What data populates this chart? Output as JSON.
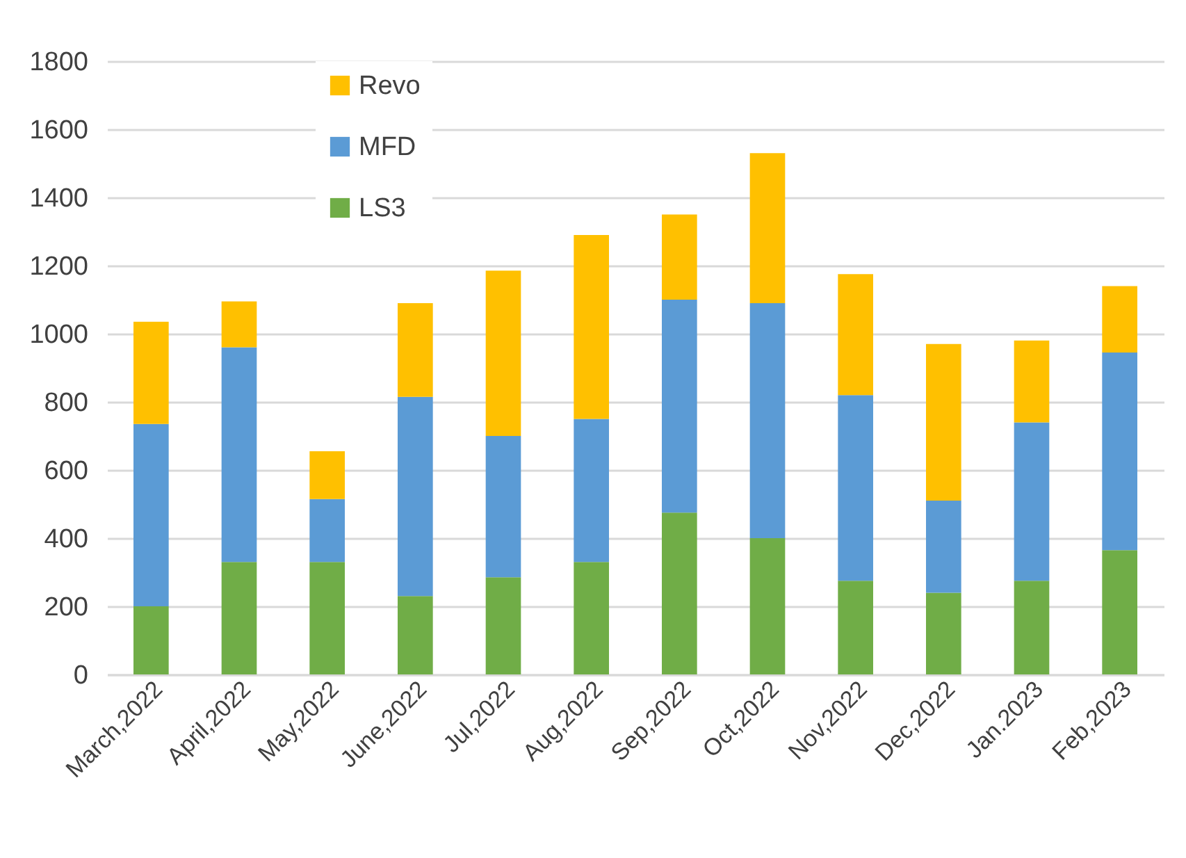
{
  "chart_data": {
    "type": "bar",
    "stacked": true,
    "categories": [
      "March,2022",
      "April,2022",
      "May,2022",
      "June,2022",
      "Jul,2022",
      "Aug,2022",
      "Sep,2022",
      "Oct,2022",
      "Nov,2022",
      "Dec,2022",
      "Jan.2023",
      "Feb,2023"
    ],
    "series": [
      {
        "name": "LS3",
        "color": "#70ad47",
        "values": [
          200,
          330,
          330,
          230,
          285,
          330,
          475,
          400,
          275,
          240,
          275,
          365
        ]
      },
      {
        "name": "MFD",
        "color": "#5b9bd5",
        "values": [
          535,
          630,
          185,
          585,
          415,
          420,
          625,
          690,
          545,
          270,
          465,
          580
        ]
      },
      {
        "name": "Revo",
        "color": "#ffc000",
        "values": [
          300,
          135,
          140,
          275,
          485,
          540,
          250,
          440,
          355,
          460,
          240,
          195
        ]
      }
    ],
    "ylim": [
      0,
      1800
    ],
    "yticks": [
      0,
      200,
      400,
      600,
      800,
      1000,
      1200,
      1400,
      1600,
      1800
    ],
    "grid": "y",
    "legend": "top left"
  }
}
